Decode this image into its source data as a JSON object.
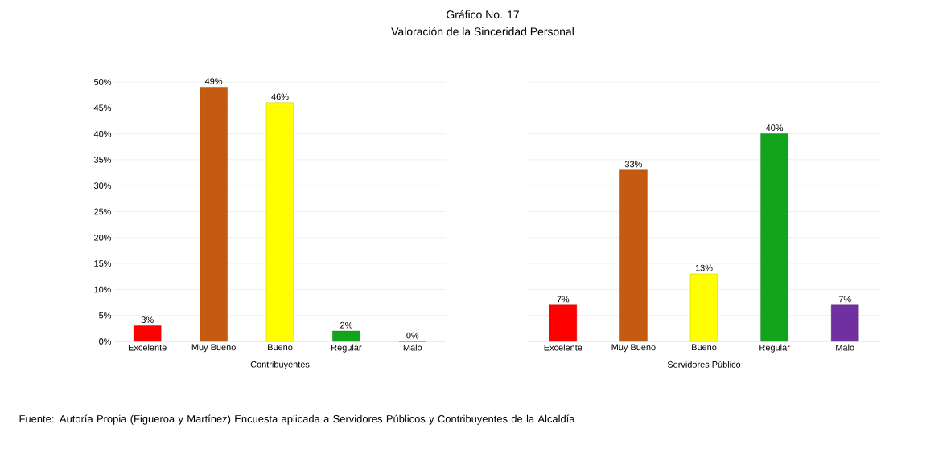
{
  "chart_data": [
    {
      "type": "bar",
      "title": "Gráfico No. 17",
      "subtitle": "Valoración de la Sinceridad Personal",
      "xlabel": "Contribuyentes",
      "categories": [
        "Excelente",
        "Muy Bueno",
        "Bueno",
        "Regular",
        "Malo"
      ],
      "values": [
        3,
        49,
        46,
        2,
        0
      ],
      "value_labels": [
        "3%",
        "49%",
        "46%",
        "2%",
        "0%"
      ],
      "colors": [
        "#ff0000",
        "#c55a11",
        "#ffff00",
        "#11a41c",
        "#7030a0"
      ],
      "ylim": [
        0,
        50
      ],
      "yticks": [
        {
          "value": 0,
          "label": "0%"
        },
        {
          "value": 5,
          "label": "5%"
        },
        {
          "value": 10,
          "label": "10%"
        },
        {
          "value": 15,
          "label": "15%"
        },
        {
          "value": 20,
          "label": "20%"
        },
        {
          "value": 25,
          "label": "25%"
        },
        {
          "value": 30,
          "label": "30%"
        },
        {
          "value": 35,
          "label": "35%"
        },
        {
          "value": 40,
          "label": "40%"
        },
        {
          "value": 45,
          "label": "45%"
        },
        {
          "value": 50,
          "label": "50%"
        }
      ],
      "grid": "y",
      "annotations": [
        "Fuente:  Autoría Propia (Figueroa y Martínez) Encuesta aplicada a Servidores Públicos y Contribuyentes de la Alcaldía"
      ]
    },
    {
      "type": "bar",
      "xlabel": "Servidores Público",
      "categories": [
        "Excelente",
        "Muy Bueno",
        "Bueno",
        "Regular",
        "Malo"
      ],
      "values": [
        7,
        33,
        13,
        40,
        7
      ],
      "value_labels": [
        "7%",
        "33%",
        "13%",
        "40%",
        "7%"
      ],
      "colors": [
        "#ff0000",
        "#c55a11",
        "#ffff00",
        "#11a41c",
        "#7030a0"
      ],
      "ylim": [
        0,
        50
      ],
      "yticks": [
        {
          "value": 0,
          "label": null
        },
        {
          "value": 5,
          "label": null
        },
        {
          "value": 10,
          "label": null
        },
        {
          "value": 15,
          "label": null
        },
        {
          "value": 20,
          "label": null
        },
        {
          "value": 25,
          "label": null
        },
        {
          "value": 30,
          "label": null
        },
        {
          "value": 35,
          "label": null
        },
        {
          "value": 40,
          "label": null
        },
        {
          "value": 45,
          "label": null
        },
        {
          "value": 50,
          "label": null
        }
      ],
      "grid": "y",
      "tick_labels": "x"
    }
  ]
}
